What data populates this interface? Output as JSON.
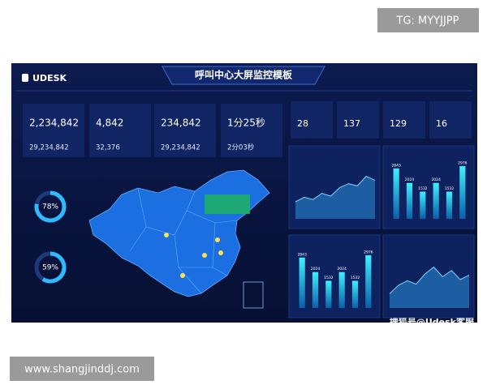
{
  "header": {
    "brand": "UDESK",
    "title": "呼叫中心大屏监控模板"
  },
  "watermarks": {
    "top": "TG: MYYJJPP",
    "bottom": "www.shangjinddj.com",
    "source": "搜狐号@Udesk客服"
  },
  "stats": [
    {
      "value": "2,234,842",
      "sub_value": "29,234,842"
    },
    {
      "value": "4,842",
      "sub_value": "32,376"
    },
    {
      "value": "234,842",
      "sub_value": "29,234,842"
    },
    {
      "value": "1分25秒",
      "sub_value": "2分03秒"
    }
  ],
  "counters": [
    "28",
    "137",
    "129",
    "16"
  ],
  "gauges": [
    {
      "value": 78,
      "value_label": "78%"
    },
    {
      "value": 59,
      "value_label": "59%"
    }
  ],
  "charts": [
    {
      "type": "area",
      "color": "#2a8fd8",
      "ylim": [
        0,
        100
      ],
      "values": [
        30,
        38,
        34,
        45,
        40,
        55,
        62,
        58,
        75,
        68
      ]
    },
    {
      "type": "bar",
      "color": "#22c8e8",
      "ylim": [
        0,
        3200
      ],
      "values": [
        2843,
        2024,
        1532,
        2024,
        1532,
        2976
      ]
    },
    {
      "type": "bar",
      "color": "#22c8e8",
      "ylim": [
        0,
        3200
      ],
      "values": [
        2843,
        2024,
        1532,
        2024,
        1532,
        2976
      ]
    },
    {
      "type": "area",
      "color": "#2a8fd8",
      "ylim": [
        0,
        100
      ],
      "values": [
        25,
        40,
        48,
        42,
        60,
        72,
        55,
        66,
        50,
        58
      ]
    }
  ]
}
